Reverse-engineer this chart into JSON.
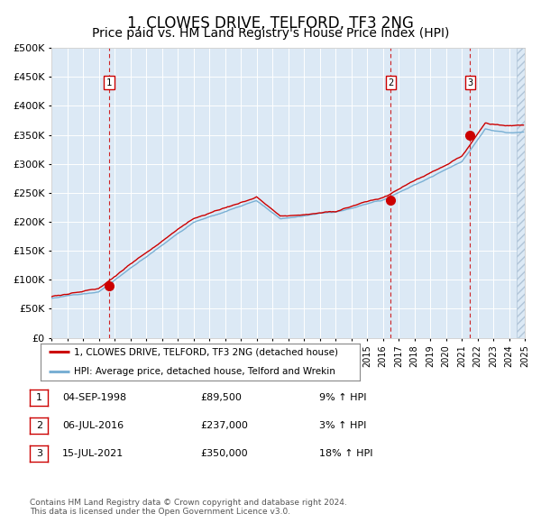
{
  "title": "1, CLOWES DRIVE, TELFORD, TF3 2NG",
  "subtitle": "Price paid vs. HM Land Registry's House Price Index (HPI)",
  "title_fontsize": 12,
  "subtitle_fontsize": 10,
  "fig_bg_color": "#ffffff",
  "plot_bg_color": "#dce9f5",
  "ylim": [
    0,
    500000
  ],
  "yticks": [
    0,
    50000,
    100000,
    150000,
    200000,
    250000,
    300000,
    350000,
    400000,
    450000,
    500000
  ],
  "xmin_year": 1995,
  "xmax_year": 2025,
  "xtick_years": [
    1995,
    1996,
    1997,
    1998,
    1999,
    2000,
    2001,
    2002,
    2003,
    2004,
    2005,
    2006,
    2007,
    2008,
    2009,
    2010,
    2011,
    2012,
    2013,
    2014,
    2015,
    2016,
    2017,
    2018,
    2019,
    2020,
    2021,
    2022,
    2023,
    2024,
    2025
  ],
  "red_line_color": "#cc0000",
  "blue_line_color": "#7ab0d4",
  "dashed_line_color": "#cc0000",
  "hatch_color": "#b0c4d8",
  "grid_color": "#ffffff",
  "sale_points": [
    {
      "year": 1998.67,
      "price": 89500,
      "label": "1"
    },
    {
      "year": 2016.5,
      "price": 237000,
      "label": "2"
    },
    {
      "year": 2021.54,
      "price": 350000,
      "label": "3"
    }
  ],
  "legend_entries": [
    "1, CLOWES DRIVE, TELFORD, TF3 2NG (detached house)",
    "HPI: Average price, detached house, Telford and Wrekin"
  ],
  "table_rows": [
    {
      "num": "1",
      "date": "04-SEP-1998",
      "price": "£89,500",
      "hpi": "9% ↑ HPI"
    },
    {
      "num": "2",
      "date": "06-JUL-2016",
      "price": "£237,000",
      "hpi": "3% ↑ HPI"
    },
    {
      "num": "3",
      "date": "15-JUL-2021",
      "price": "£350,000",
      "hpi": "18% ↑ HPI"
    }
  ],
  "footnote1": "Contains HM Land Registry data © Crown copyright and database right 2024.",
  "footnote2": "This data is licensed under the Open Government Licence v3.0."
}
